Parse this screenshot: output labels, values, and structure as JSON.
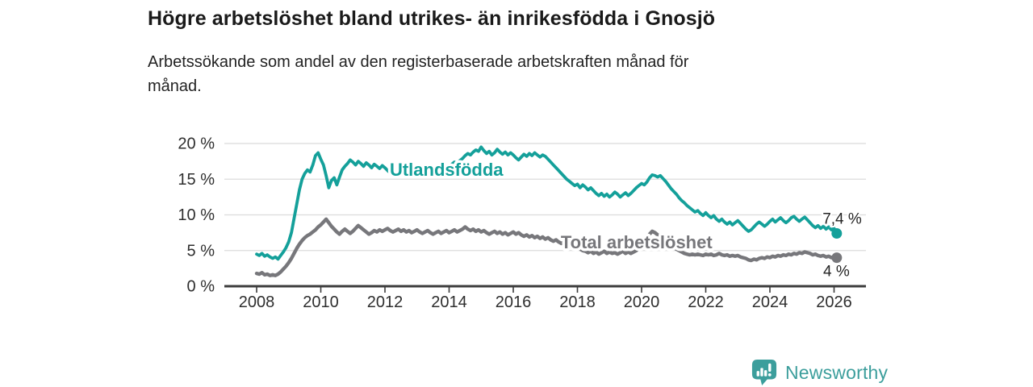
{
  "title": "Högre arbetslöshet bland utrikes- än inrikesfödda i Gnosjö",
  "subtitle_lines": [
    "Arbetssökande som andel av den registerbaserade arbetskraften månad för",
    "månad."
  ],
  "branding": {
    "name": "Newsworthy",
    "color": "#3C9E9C",
    "icon": "bar-chart-speech-bubble-icon"
  },
  "chart_data": {
    "type": "line",
    "title": "",
    "xlabel": "",
    "ylabel": "",
    "x_start": 2008.0,
    "x_step": 0.0833333,
    "xlim": [
      2007.9,
      2027.0
    ],
    "ylim": [
      0,
      20
    ],
    "grid": "horizontal",
    "legend_position": "inline-labels",
    "yticks": [
      0,
      5,
      10,
      15,
      20
    ],
    "ytick_labels": [
      "0 %",
      "5 %",
      "10 %",
      "15 %",
      "20 %"
    ],
    "xticks": [
      2008,
      2010,
      2012,
      2014,
      2016,
      2018,
      2020,
      2022,
      2024,
      2026
    ],
    "style": {
      "grid_color": "#DBDBDB",
      "axis_color": "#3C3C3C",
      "tick_text_color": "#2E2E2E",
      "end_label_color": "#232323"
    },
    "series": [
      {
        "name": "Utlandsfödda",
        "color": "#14A09A",
        "end_label": "7,4 %",
        "end_value": 7.4,
        "label_x": 2012.15,
        "label_y": 15.5,
        "values": [
          4.5,
          4.3,
          4.6,
          4.2,
          4.4,
          4.1,
          3.9,
          4.1,
          3.8,
          4.3,
          4.8,
          5.4,
          6.2,
          7.5,
          9.5,
          11.5,
          13.5,
          15.0,
          15.8,
          16.3,
          16.0,
          17.0,
          18.3,
          18.7,
          17.8,
          17.0,
          15.5,
          13.8,
          14.8,
          15.2,
          14.2,
          15.3,
          16.3,
          16.8,
          17.2,
          17.7,
          17.4,
          17.0,
          17.5,
          17.2,
          16.8,
          17.3,
          17.0,
          16.6,
          17.1,
          16.8,
          16.5,
          16.9,
          16.6,
          16.2,
          15.9,
          16.3,
          16.6,
          16.2,
          16.5,
          16.9,
          16.6,
          16.3,
          16.7,
          16.4,
          16.1,
          15.4,
          16.0,
          15.5,
          16.2,
          16.6,
          16.3,
          16.7,
          16.4,
          16.8,
          17.1,
          16.9,
          16.8,
          17.1,
          17.4,
          17.2,
          17.6,
          17.9,
          18.3,
          18.6,
          18.4,
          18.8,
          19.1,
          18.9,
          19.5,
          19.0,
          18.6,
          18.9,
          18.4,
          18.7,
          19.2,
          18.8,
          18.5,
          18.8,
          18.4,
          18.7,
          18.4,
          18.0,
          17.7,
          18.1,
          18.5,
          18.2,
          18.6,
          18.3,
          18.7,
          18.4,
          18.1,
          18.4,
          18.2,
          17.8,
          17.4,
          17.0,
          16.6,
          16.2,
          15.8,
          15.4,
          15.0,
          14.7,
          14.4,
          14.1,
          14.3,
          13.8,
          14.2,
          13.9,
          13.5,
          13.8,
          13.4,
          13.0,
          12.7,
          13.0,
          12.6,
          12.9,
          12.5,
          12.8,
          13.2,
          12.9,
          12.5,
          12.8,
          13.1,
          12.7,
          13.0,
          13.4,
          13.8,
          14.1,
          14.4,
          14.2,
          14.6,
          15.2,
          15.6,
          15.5,
          15.3,
          15.5,
          15.1,
          14.7,
          14.2,
          13.7,
          13.3,
          12.9,
          12.4,
          12.0,
          11.7,
          11.3,
          11.0,
          10.7,
          10.4,
          10.6,
          10.2,
          9.9,
          10.3,
          9.9,
          9.6,
          9.9,
          9.4,
          9.1,
          9.4,
          9.0,
          8.7,
          9.0,
          8.6,
          8.9,
          9.2,
          8.8,
          8.4,
          8.0,
          7.7,
          7.9,
          8.3,
          8.7,
          9.0,
          8.7,
          8.4,
          8.7,
          9.1,
          9.4,
          9.0,
          9.3,
          9.6,
          9.2,
          8.9,
          9.2,
          9.6,
          9.8,
          9.4,
          9.1,
          9.4,
          9.7,
          9.3,
          8.9,
          8.5,
          8.2,
          8.5,
          8.1,
          8.4,
          8.0,
          8.3,
          7.9,
          8.1,
          7.4
        ]
      },
      {
        "name": "Total arbetslöshet",
        "color": "#77777B",
        "end_label": "4 %",
        "end_value": 4.0,
        "label_x": 2017.48,
        "label_y": 5.3,
        "values": [
          1.8,
          1.7,
          1.9,
          1.6,
          1.7,
          1.5,
          1.6,
          1.5,
          1.7,
          2.0,
          2.4,
          2.8,
          3.3,
          3.9,
          4.6,
          5.3,
          5.9,
          6.4,
          6.8,
          7.1,
          7.3,
          7.6,
          7.9,
          8.3,
          8.6,
          9.0,
          9.4,
          8.9,
          8.4,
          8.0,
          7.6,
          7.3,
          7.7,
          8.0,
          7.7,
          7.4,
          7.7,
          8.1,
          8.5,
          8.2,
          7.9,
          7.6,
          7.3,
          7.5,
          7.8,
          7.6,
          7.9,
          7.7,
          7.9,
          8.1,
          7.8,
          7.6,
          7.8,
          8.0,
          7.7,
          7.9,
          7.6,
          7.8,
          7.5,
          7.7,
          7.9,
          7.6,
          7.4,
          7.6,
          7.8,
          7.5,
          7.3,
          7.5,
          7.7,
          7.4,
          7.6,
          7.8,
          7.5,
          7.7,
          7.9,
          7.6,
          7.8,
          8.0,
          8.3,
          8.0,
          7.8,
          8.0,
          7.7,
          7.9,
          7.6,
          7.8,
          7.5,
          7.3,
          7.5,
          7.7,
          7.4,
          7.6,
          7.3,
          7.5,
          7.2,
          7.4,
          7.6,
          7.3,
          7.5,
          7.2,
          7.0,
          7.2,
          6.9,
          7.1,
          6.8,
          7.0,
          6.7,
          6.9,
          6.6,
          6.8,
          6.5,
          6.3,
          6.5,
          6.2,
          6.0,
          6.2,
          5.9,
          5.7,
          5.9,
          5.6,
          5.4,
          5.2,
          5.0,
          4.9,
          4.7,
          4.9,
          4.6,
          4.8,
          4.5,
          4.7,
          4.9,
          4.6,
          4.8,
          4.6,
          4.7,
          4.5,
          4.7,
          4.9,
          4.6,
          4.8,
          4.6,
          4.8,
          5.0,
          5.3,
          5.6,
          6.0,
          6.6,
          7.3,
          7.7,
          7.5,
          7.2,
          6.9,
          6.6,
          6.3,
          6.0,
          5.7,
          5.5,
          5.2,
          5.0,
          4.8,
          4.6,
          4.5,
          4.4,
          4.5,
          4.4,
          4.5,
          4.4,
          4.3,
          4.5,
          4.4,
          4.5,
          4.3,
          4.4,
          4.6,
          4.4,
          4.3,
          4.4,
          4.2,
          4.3,
          4.2,
          4.3,
          4.1,
          4.0,
          3.9,
          3.7,
          3.6,
          3.8,
          3.7,
          3.9,
          4.0,
          3.9,
          4.1,
          4.0,
          4.2,
          4.1,
          4.3,
          4.2,
          4.4,
          4.3,
          4.5,
          4.4,
          4.6,
          4.5,
          4.7,
          4.6,
          4.8,
          4.7,
          4.6,
          4.4,
          4.5,
          4.3,
          4.2,
          4.3,
          4.1,
          4.2,
          4.0,
          4.1,
          4.0
        ]
      }
    ]
  }
}
